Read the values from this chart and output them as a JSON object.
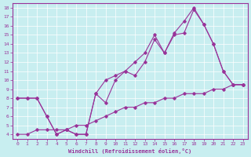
{
  "xlabel": "Windchill (Refroidissement éolien,°C)",
  "line_color": "#993399",
  "bg_color": "#c8eef0",
  "grid_color": "#ffffff",
  "marker": "D",
  "markersize": 1.8,
  "linewidth": 0.8,
  "xlim": [
    -0.5,
    23.5
  ],
  "ylim": [
    3.5,
    18.5
  ],
  "yticks": [
    4,
    5,
    6,
    7,
    8,
    9,
    10,
    11,
    12,
    13,
    14,
    15,
    16,
    17,
    18
  ],
  "xticks": [
    0,
    1,
    2,
    3,
    4,
    5,
    6,
    7,
    8,
    9,
    10,
    11,
    12,
    13,
    14,
    15,
    16,
    17,
    18,
    19,
    20,
    21,
    22,
    23
  ],
  "line1_x": [
    0,
    1,
    2,
    3,
    4,
    5,
    6,
    7,
    8,
    9,
    10,
    11,
    12,
    13,
    14,
    15,
    16,
    17,
    18,
    19,
    20,
    21,
    22,
    23
  ],
  "line1_y": [
    8,
    8,
    8,
    6,
    4,
    4.5,
    4,
    4,
    8.5,
    7.5,
    10,
    11,
    10.5,
    12,
    14.5,
    13,
    15,
    15.2,
    17.8,
    16.2,
    14,
    11,
    9.5,
    9.5
  ],
  "line2_x": [
    0,
    1,
    2,
    3,
    4,
    5,
    6,
    7,
    8,
    9,
    10,
    11,
    12,
    13,
    14,
    15,
    16,
    17,
    18,
    19,
    20,
    21,
    22,
    23
  ],
  "line2_y": [
    8,
    8,
    8,
    6,
    4,
    4.5,
    4,
    4,
    8.5,
    10,
    10.5,
    11,
    12,
    13,
    15,
    13,
    15.2,
    16.5,
    18,
    16.2,
    14,
    11,
    9.5,
    9.5
  ],
  "line3_x": [
    0,
    1,
    2,
    3,
    4,
    5,
    6,
    7,
    8,
    9,
    10,
    11,
    12,
    13,
    14,
    15,
    16,
    17,
    18,
    19,
    20,
    21,
    22,
    23
  ],
  "line3_y": [
    4,
    4,
    4.5,
    4.5,
    4.5,
    4.5,
    5,
    5,
    5.5,
    6,
    6.5,
    7,
    7,
    7.5,
    7.5,
    8,
    8,
    8.5,
    8.5,
    8.5,
    9,
    9,
    9.5,
    9.5
  ],
  "tick_fontsize": 4.5,
  "xlabel_fontsize": 5.0
}
